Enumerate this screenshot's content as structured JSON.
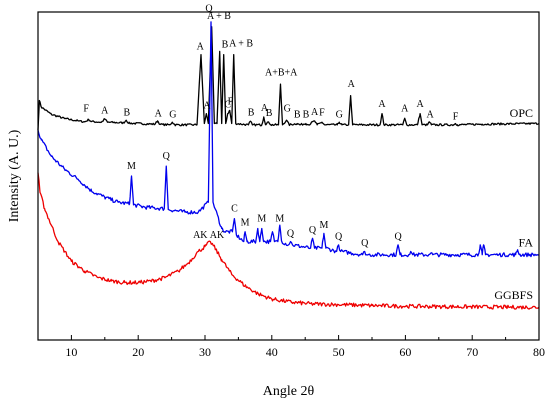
{
  "chart_data": {
    "type": "line",
    "title": "",
    "xlabel": "Angle 2θ",
    "ylabel": "Intensity (A. U.)",
    "xlim": [
      5,
      80
    ],
    "x_ticks": [
      10,
      20,
      30,
      40,
      50,
      60,
      70,
      80
    ],
    "y_ticks": [],
    "grid": false,
    "series": [
      {
        "name": "OPC",
        "color": "#000000",
        "offset": 0.64,
        "points": [
          [
            5,
            0.64
          ],
          [
            5.2,
            0.73
          ],
          [
            5.5,
            0.71
          ],
          [
            7,
            0.688
          ],
          [
            9,
            0.675
          ],
          [
            11,
            0.668
          ],
          [
            12,
            0.665
          ],
          [
            12.6,
            0.672
          ],
          [
            13,
            0.666
          ],
          [
            14.5,
            0.664
          ],
          [
            15,
            0.674
          ],
          [
            15.4,
            0.664
          ],
          [
            17.8,
            0.662
          ],
          [
            18.2,
            0.67
          ],
          [
            18.6,
            0.661
          ],
          [
            22.5,
            0.658
          ],
          [
            22.9,
            0.668
          ],
          [
            23.3,
            0.657
          ],
          [
            24.7,
            0.656
          ],
          [
            25.1,
            0.664
          ],
          [
            25.5,
            0.656
          ],
          [
            28.8,
            0.656
          ],
          [
            29.4,
            0.87
          ],
          [
            29.9,
            0.66
          ],
          [
            30.2,
            0.69
          ],
          [
            30.5,
            0.66
          ],
          [
            31,
            0.955
          ],
          [
            31.4,
            0.66
          ],
          [
            31.8,
            0.66
          ],
          [
            32.2,
            0.88
          ],
          [
            32.5,
            0.66
          ],
          [
            32.8,
            0.87
          ],
          [
            33.1,
            0.66
          ],
          [
            33.4,
            0.69
          ],
          [
            33.7,
            0.7
          ],
          [
            34.0,
            0.66
          ],
          [
            34.3,
            0.87
          ],
          [
            34.6,
            0.66
          ],
          [
            36.5,
            0.656
          ],
          [
            36.8,
            0.667
          ],
          [
            37.1,
            0.656
          ],
          [
            38.5,
            0.656
          ],
          [
            38.8,
            0.68
          ],
          [
            39.1,
            0.656
          ],
          [
            39.5,
            0.665
          ],
          [
            39.9,
            0.656
          ],
          [
            41.0,
            0.656
          ],
          [
            41.3,
            0.78
          ],
          [
            41.6,
            0.656
          ],
          [
            42.2,
            0.67
          ],
          [
            42.6,
            0.656
          ],
          [
            43.8,
            0.66
          ],
          [
            44.2,
            0.656
          ],
          [
            45.1,
            0.66
          ],
          [
            45.5,
            0.656
          ],
          [
            46.4,
            0.668
          ],
          [
            46.8,
            0.656
          ],
          [
            47.5,
            0.664
          ],
          [
            47.9,
            0.656
          ],
          [
            49.8,
            0.656
          ],
          [
            50.1,
            0.664
          ],
          [
            50.5,
            0.656
          ],
          [
            51.5,
            0.656
          ],
          [
            51.8,
            0.745
          ],
          [
            52.1,
            0.656
          ],
          [
            56.2,
            0.656
          ],
          [
            56.5,
            0.69
          ],
          [
            56.8,
            0.656
          ],
          [
            59.6,
            0.656
          ],
          [
            59.9,
            0.676
          ],
          [
            60.2,
            0.656
          ],
          [
            61.8,
            0.656
          ],
          [
            62.2,
            0.69
          ],
          [
            62.5,
            0.656
          ],
          [
            63.3,
            0.656
          ],
          [
            63.6,
            0.665
          ],
          [
            63.9,
            0.656
          ],
          [
            67.2,
            0.656
          ],
          [
            67.5,
            0.66
          ],
          [
            67.8,
            0.656
          ],
          [
            71.5,
            0.658
          ],
          [
            80,
            0.66
          ]
        ]
      },
      {
        "name": "FA",
        "color": "#0000ee",
        "offset": 0.24,
        "points": [
          [
            5,
            0.64
          ],
          [
            5.5,
            0.61
          ],
          [
            7,
            0.56
          ],
          [
            9,
            0.52
          ],
          [
            11,
            0.49
          ],
          [
            13,
            0.455
          ],
          [
            15,
            0.435
          ],
          [
            17,
            0.42
          ],
          [
            18.7,
            0.415
          ],
          [
            19.0,
            0.5
          ],
          [
            19.3,
            0.412
          ],
          [
            21,
            0.405
          ],
          [
            23.9,
            0.4
          ],
          [
            24.2,
            0.53
          ],
          [
            24.5,
            0.398
          ],
          [
            27,
            0.39
          ],
          [
            29,
            0.39
          ],
          [
            30.5,
            0.42
          ],
          [
            30.9,
            0.97
          ],
          [
            31.2,
            0.42
          ],
          [
            32.5,
            0.34
          ],
          [
            33,
            0.33
          ],
          [
            34.1,
            0.33
          ],
          [
            34.4,
            0.37
          ],
          [
            34.7,
            0.32
          ],
          [
            35.8,
            0.3
          ],
          [
            36.0,
            0.33
          ],
          [
            36.3,
            0.3
          ],
          [
            37.6,
            0.3
          ],
          [
            37.9,
            0.34
          ],
          [
            38.2,
            0.3
          ],
          [
            38.5,
            0.34
          ],
          [
            38.8,
            0.3
          ],
          [
            39.8,
            0.3
          ],
          [
            40.1,
            0.33
          ],
          [
            40.4,
            0.3
          ],
          [
            40.9,
            0.3
          ],
          [
            41.2,
            0.35
          ],
          [
            41.5,
            0.3
          ],
          [
            42.5,
            0.29
          ],
          [
            42.8,
            0.3
          ],
          [
            43.1,
            0.29
          ],
          [
            45.8,
            0.28
          ],
          [
            46.1,
            0.31
          ],
          [
            46.4,
            0.28
          ],
          [
            47.5,
            0.28
          ],
          [
            47.8,
            0.325
          ],
          [
            48.1,
            0.28
          ],
          [
            49.7,
            0.27
          ],
          [
            50.0,
            0.29
          ],
          [
            50.3,
            0.27
          ],
          [
            53.6,
            0.26
          ],
          [
            53.9,
            0.27
          ],
          [
            54.2,
            0.26
          ],
          [
            58.6,
            0.26
          ],
          [
            58.9,
            0.29
          ],
          [
            59.2,
            0.26
          ],
          [
            60.5,
            0.26
          ],
          [
            60.8,
            0.27
          ],
          [
            61.1,
            0.26
          ],
          [
            63.5,
            0.26
          ],
          [
            63.8,
            0.265
          ],
          [
            64.1,
            0.26
          ],
          [
            70.9,
            0.26
          ],
          [
            71.2,
            0.29
          ],
          [
            71.5,
            0.26
          ],
          [
            71.7,
            0.29
          ],
          [
            72,
            0.26
          ],
          [
            74,
            0.26
          ],
          [
            76.5,
            0.26
          ],
          [
            76.8,
            0.275
          ],
          [
            77.1,
            0.26
          ],
          [
            80,
            0.26
          ]
        ]
      },
      {
        "name": "GGBFS",
        "color": "#ee0000",
        "offset": 0.1,
        "points": [
          [
            5,
            0.51
          ],
          [
            5.3,
            0.45
          ],
          [
            6,
            0.4
          ],
          [
            7,
            0.35
          ],
          [
            8,
            0.3
          ],
          [
            9,
            0.27
          ],
          [
            10,
            0.24
          ],
          [
            12,
            0.21
          ],
          [
            14,
            0.19
          ],
          [
            16,
            0.18
          ],
          [
            18,
            0.175
          ],
          [
            20,
            0.175
          ],
          [
            22,
            0.18
          ],
          [
            24,
            0.19
          ],
          [
            26,
            0.21
          ],
          [
            27.5,
            0.235
          ],
          [
            29,
            0.27
          ],
          [
            30,
            0.285
          ],
          [
            30.8,
            0.3
          ],
          [
            31.5,
            0.28
          ],
          [
            32.5,
            0.245
          ],
          [
            34,
            0.2
          ],
          [
            36,
            0.165
          ],
          [
            38,
            0.14
          ],
          [
            40,
            0.125
          ],
          [
            43,
            0.115
          ],
          [
            46,
            0.11
          ],
          [
            50,
            0.108
          ],
          [
            55,
            0.105
          ],
          [
            60,
            0.103
          ],
          [
            65,
            0.102
          ],
          [
            70,
            0.101
          ],
          [
            75,
            0.1
          ],
          [
            80,
            0.1
          ]
        ]
      }
    ],
    "series_labels": [
      {
        "text": "OPC",
        "x": 80,
        "y": 0.656
      },
      {
        "text": "FA",
        "x": 80,
        "y": 0.26
      },
      {
        "text": "GGBFS",
        "x": 80,
        "y": 0.1
      }
    ],
    "annotations": [
      {
        "text": "F",
        "x": 12.2,
        "y": 0.69
      },
      {
        "text": "A",
        "x": 15.0,
        "y": 0.685
      },
      {
        "text": "B",
        "x": 18.3,
        "y": 0.678
      },
      {
        "text": "A",
        "x": 23.0,
        "y": 0.675
      },
      {
        "text": "G",
        "x": 25.2,
        "y": 0.672
      },
      {
        "text": "A",
        "x": 29.3,
        "y": 0.88
      },
      {
        "text": "A",
        "x": 30.3,
        "y": 0.7
      },
      {
        "text": "Q",
        "x": 30.6,
        "y": 0.995
      },
      {
        "text": "A + B",
        "x": 32.1,
        "y": 0.972
      },
      {
        "text": "B",
        "x": 33.0,
        "y": 0.885
      },
      {
        "text": "C",
        "x": 33.4,
        "y": 0.702
      },
      {
        "text": "F",
        "x": 33.8,
        "y": 0.712
      },
      {
        "text": "A + B",
        "x": 35.4,
        "y": 0.888
      },
      {
        "text": "B",
        "x": 36.9,
        "y": 0.678
      },
      {
        "text": "A",
        "x": 38.9,
        "y": 0.692
      },
      {
        "text": "B",
        "x": 39.6,
        "y": 0.677
      },
      {
        "text": "A+B+A",
        "x": 41.4,
        "y": 0.8
      },
      {
        "text": "G",
        "x": 42.3,
        "y": 0.69
      },
      {
        "text": "B",
        "x": 43.8,
        "y": 0.672
      },
      {
        "text": "B",
        "x": 45.1,
        "y": 0.672
      },
      {
        "text": "A",
        "x": 46.4,
        "y": 0.68
      },
      {
        "text": "F",
        "x": 47.5,
        "y": 0.678
      },
      {
        "text": "G",
        "x": 50.1,
        "y": 0.672
      },
      {
        "text": "A",
        "x": 51.9,
        "y": 0.765
      },
      {
        "text": "A",
        "x": 56.5,
        "y": 0.705
      },
      {
        "text": "A",
        "x": 59.9,
        "y": 0.69
      },
      {
        "text": "A",
        "x": 62.2,
        "y": 0.705
      },
      {
        "text": "A",
        "x": 63.7,
        "y": 0.673
      },
      {
        "text": "F",
        "x": 67.5,
        "y": 0.666
      },
      {
        "text": "M",
        "x": 19.0,
        "y": 0.515
      },
      {
        "text": "Q",
        "x": 24.2,
        "y": 0.545
      },
      {
        "text": "C",
        "x": 34.4,
        "y": 0.385
      },
      {
        "text": "M",
        "x": 36.0,
        "y": 0.343
      },
      {
        "text": "M",
        "x": 38.5,
        "y": 0.355
      },
      {
        "text": "M",
        "x": 41.2,
        "y": 0.355
      },
      {
        "text": "Q",
        "x": 42.8,
        "y": 0.31
      },
      {
        "text": "Q",
        "x": 46.1,
        "y": 0.32
      },
      {
        "text": "M",
        "x": 47.8,
        "y": 0.335
      },
      {
        "text": "Q",
        "x": 50.0,
        "y": 0.3
      },
      {
        "text": "Q",
        "x": 53.9,
        "y": 0.28
      },
      {
        "text": "Q",
        "x": 58.9,
        "y": 0.3
      },
      {
        "text": "AK",
        "x": 29.3,
        "y": 0.305
      },
      {
        "text": "AK",
        "x": 31.8,
        "y": 0.305
      }
    ]
  }
}
